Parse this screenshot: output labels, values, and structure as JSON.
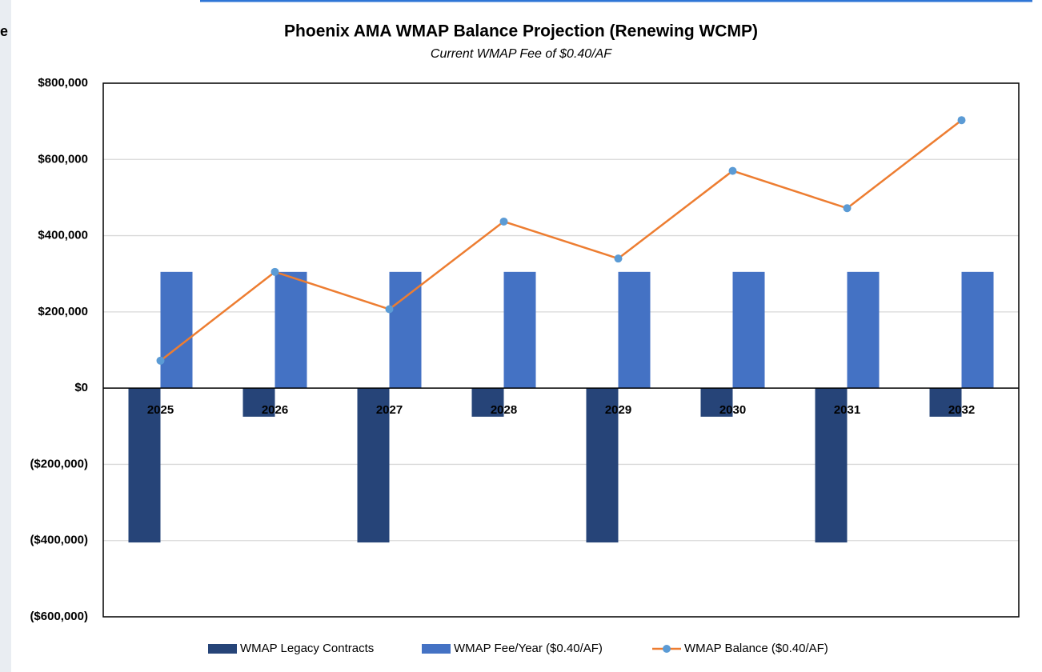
{
  "side_label": "e",
  "chart_data": {
    "type": "bar-line",
    "title": "Phoenix AMA WMAP Balance Projection (Renewing WCMP)",
    "subtitle": "Current WMAP Fee of $0.40/AF",
    "categories": [
      "2025",
      "2026",
      "2027",
      "2028",
      "2029",
      "2030",
      "2031",
      "2032"
    ],
    "series": [
      {
        "name": "WMAP Legacy Contracts",
        "type": "bar",
        "color": "#264478",
        "values": [
          -405000,
          -75000,
          -405000,
          -75000,
          -405000,
          -75000,
          -405000,
          -75000
        ]
      },
      {
        "name": "WMAP Fee/Year ($0.40/AF)",
        "type": "bar",
        "color": "#4472c4",
        "values": [
          305000,
          305000,
          305000,
          305000,
          305000,
          305000,
          305000,
          305000
        ]
      },
      {
        "name": "WMAP Balance ($0.40/AF)",
        "type": "line",
        "color": "#ed7d31",
        "marker_color": "#5b9bd5",
        "values": [
          72000,
          305000,
          207000,
          437000,
          340000,
          570000,
          472000,
          703000
        ]
      }
    ],
    "ylim": [
      -600000,
      800000
    ],
    "yticks": [
      {
        "value": -600000,
        "label": "($600,000)"
      },
      {
        "value": -400000,
        "label": "($400,000)"
      },
      {
        "value": -200000,
        "label": "($200,000)"
      },
      {
        "value": 0,
        "label": "$0"
      },
      {
        "value": 200000,
        "label": "$200,000"
      },
      {
        "value": 400000,
        "label": "$400,000"
      },
      {
        "value": 600000,
        "label": "$600,000"
      },
      {
        "value": 800000,
        "label": "$800,000"
      }
    ],
    "grid": true,
    "legend": "bottom"
  }
}
